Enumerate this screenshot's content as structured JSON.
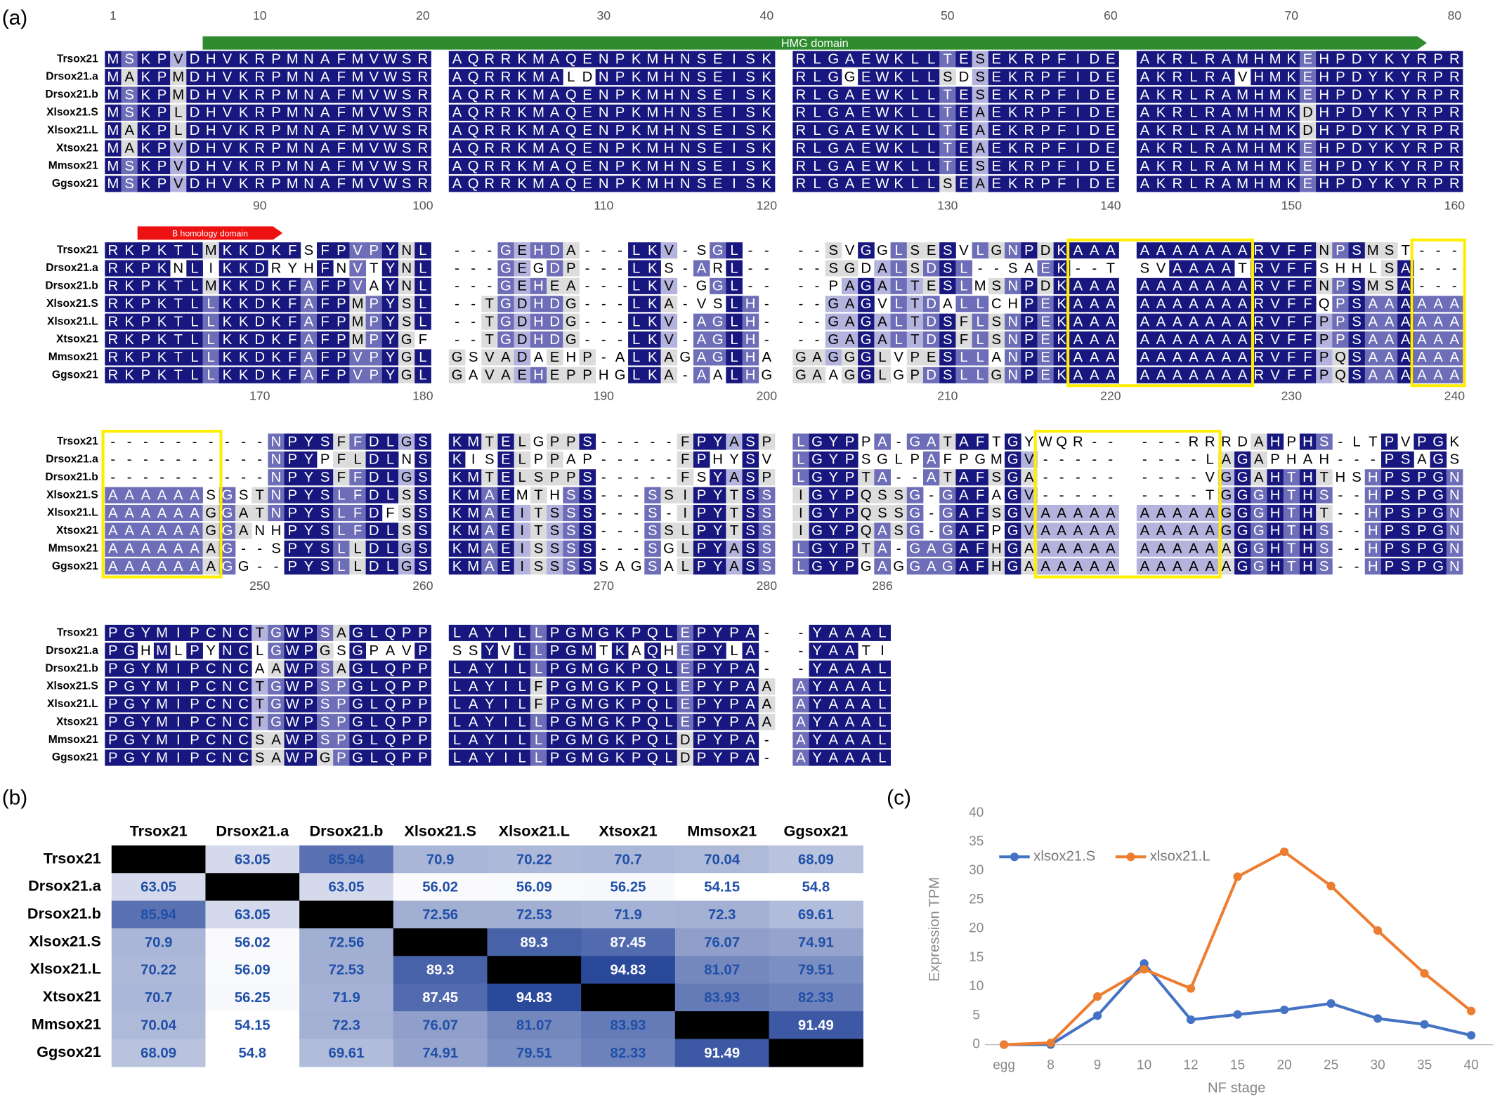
{
  "panel_labels": [
    "(a)",
    "(b)",
    "(c)"
  ],
  "alignment": {
    "sequence_names": [
      "Trsox21",
      "Drsox21.a",
      "Drsox21.b",
      "Xlsox21.S",
      "Xlsox21.L",
      "Xtsox21",
      "Mmsox21",
      "Ggsox21"
    ],
    "features": [
      {
        "label": "HMG domain"
      },
      {
        "label": "B homology domain"
      }
    ],
    "blocks": [
      {
        "ruler": [
          1,
          10,
          20,
          30,
          40,
          50,
          60,
          70,
          80
        ],
        "rows": [
          [
            "MSKPVDHVKRPMNAFMVWSR",
            "AQRRKMAQENPKMHNSEISK",
            "RLGAEWKLLTESEKRPFIDE",
            "AKRLRAMHMKEHPDYKYRPR"
          ],
          [
            "MAKPMDHVKRPMNAFMVWSR",
            "AQRRKMALDNPKMHNSEISK",
            "RLGGEWKLLSDSEKRPFIDE",
            "AKRLRAVHMKEHPDYKYRPR"
          ],
          [
            "MSKPMDHVKRPMNAFMVWSR",
            "AQRRKMAQENPKMHNSEISK",
            "RLGAEWKLLTESEKRPFIDE",
            "AKRLRAMHMKEHPDYKYRPR"
          ],
          [
            "MSKPLDHVKRPMNAFMVWSR",
            "AQRRKMAQENPKMHNSEISK",
            "RLGAEWKLLTEAEKRPFIDE",
            "AKRLRAMHMKDHPDYKYRPR"
          ],
          [
            "MAKPLDHVKRPMNAFMVWSR",
            "AQRRKMAQENPKMHNSEISK",
            "RLGAEWKLLTEAEKRPFIDE",
            "AKRLRAMHMKDHPDYKYRPR"
          ],
          [
            "MAKPVDHVKRPMNAFMVWSR",
            "AQRRKMAQENPKMHNSEISK",
            "RLGAEWKLLTEAEKRPFIDE",
            "AKRLRAMHMKEHPDYKYRPR"
          ],
          [
            "MSKPVDHVKRPMNAFMVWSR",
            "AQRRKMAQENPKMHNSEISK",
            "RLGAEWKLLTESEKRPFIDE",
            "AKRLRAMHMKEHPDYKYRPR"
          ],
          [
            "MSKPVDHVKRPMNAFMVWSR",
            "AQRRKMAQENPKMHNSEISK",
            "RLGAEWKLLSEAEKRPFIDE",
            "AKRLRAMHMKEHPDYKYRPR"
          ]
        ]
      },
      {
        "ruler": [
          90,
          100,
          110,
          120,
          130,
          140,
          150,
          160
        ],
        "rows": [
          [
            "RKPKTLMKKDKFSFPVPYNL",
            "---GEHDA---LKV-SGL--",
            "--SVGGLSESVLGNPDKAAA",
            "AAAAAAARVFFNPSMST---"
          ],
          [
            "RKPKNLIKKDRYHFNVTYNL",
            "---GEGDP---LKS-ARL--",
            "--SGDALSDSL--SAEK--T",
            "SVAAAATRVFFSHHLSA---"
          ],
          [
            "RKPKTLMKKDKFAFPVAYNL",
            "---GEHEA---LKV-GGL--",
            "--PAGALTESLMSNPDKAAA",
            "AAAAAAARVFFNPSMSA---"
          ],
          [
            "RKPKTLLKKDKFAFPMPYSL",
            "--TGDHDG---LKA-VSLH-",
            "--GAGVLTDALLCHPEKAAA",
            "AAAAAAARVFFQPSAAAAAA"
          ],
          [
            "RKPKTLLKKDKFAFPMPYSL",
            "--TGDHDG---LKV-AGLH-",
            "--GAGALTDSFLSNPEKAAA",
            "AAAAAAARVFFPPSAAAAAA"
          ],
          [
            "RKPKTLLKKDKFAFPMPYGF",
            "--TGDHDG---LKV-AGLH-",
            "--GAGALTDSFLSNPEKAAA",
            "AAAAAAARVFFPPSAAAAAA"
          ],
          [
            "RKPKTLLKKDKFAFPVPYGL",
            "GSVADAEHP-ALKAGAGLHA",
            "GAGGGLVPESLLANPEKAAA",
            "AAAAAAARVFFPQSAAAAAA"
          ],
          [
            "RKPKTLLKKDKFAFPVPYGL",
            "GAVAEHEPPHGLKA-AALHG",
            "GAAGGLGPDSLLGNPEKAAA",
            "AAAAAAARVFFPQSAAAAAA"
          ]
        ]
      },
      {
        "ruler": [
          170,
          180,
          190,
          200,
          210,
          220,
          230,
          240
        ],
        "rows": [
          [
            "----------NPYSFFDLGS",
            "KMTELGPPS-----FPYASP",
            "LGYPPA-GATAFTGYWQR--",
            "---RRRDAHPHS-LTPVPGK"
          ],
          [
            "----------NPYPFLDLNS",
            "KISELPPAP-----FPHYSV",
            "LGYPSGLPAFPGMGV-----",
            "----LAGAPHAH---PSAGS"
          ],
          [
            "----------NPYSFFDLGS",
            "KMTELSPPS-----FSYASP",
            "LGYPTA--ATAFSGA-----",
            "----VGGAHTHTHSHPSPGN"
          ],
          [
            "AAAAAASGSTNPYSLFDLSS",
            "KMAEMTHSS---SSIPYTSS",
            "IGYPQSSG-GAFAGV-----",
            "----TGGGHTHS--HPSPGN"
          ],
          [
            "AAAAAAGGATNPYSLFDFSS",
            "KMAEITSSS---S-IPYTSS",
            "IGYPQSSG-GAFSGVAAAAA",
            "AAAAAGGGHTHT--HPSPGN"
          ],
          [
            "AAAAAAGGANHPYSLFDLSS",
            "KMAEITSSS---SSLPYTSS",
            "IGYPQASG-GAFPGVAAAAA",
            "AAAAAGGGHTHS--HPSPGN"
          ],
          [
            "AAAAAAAG--SPYSLLDLGS",
            "KMAEISSSS---SGLPYASS",
            "LGYPTA-GAGAFHGAAAAAA",
            "AAAAAAGGHTHS--HPSPGN"
          ],
          [
            "AAAAAAAGG--PYSLLDLGS",
            "KMAEISSSSSAGSALPYASS",
            "LGYPGAGGAGAFHGAAAAAA",
            "AAAAAAGGHTHS--HPSPGN"
          ]
        ]
      },
      {
        "ruler": [
          250,
          260,
          270,
          280,
          286
        ],
        "rows": [
          [
            "PGYMIPCNCTGWPSAGLQPP",
            "LAYILLPGMGKPQLEPYPA-",
            "-YAAAL"
          ],
          [
            "PGHMLPYNCLGWPGSGPAVP",
            "SSYVLLPGMTKAQHEPYLA-",
            "-YAATI"
          ],
          [
            "PGYMIPCNCAAWPSAGLQPP",
            "LAYILLPGMGKPQLEPYPA-",
            "-YAAAL"
          ],
          [
            "PGYMIPCNCTGWPSPGLQPP",
            "LAYILFPGMGKPQLEPYPAA",
            "AYAAAL"
          ],
          [
            "PGYMIPCNCTGWPSPGLQPP",
            "LAYILFPGMGKPQLEPYPAA",
            "AYAAAL"
          ],
          [
            "PGYMIPCNCTGWPSPGLQPP",
            "LAYILLPGMGKPQLEPYPAA",
            "AYAAAL"
          ],
          [
            "PGYMIPCNCSAWPSPGLQPP",
            "LAYILLPGMGKPQLDPYPA-",
            "AYAAAL"
          ],
          [
            "PGYMIPCNCSAWPGPGLQPP",
            "LAYILLPGMGKPQLDPYPA-",
            "AYAAAL"
          ]
        ]
      }
    ]
  },
  "identity_table": {
    "columns": [
      "Trsox21",
      "Drsox21.a",
      "Drsox21.b",
      "Xlsox21.S",
      "Xlsox21.L",
      "Xtsox21",
      "Mmsox21",
      "Ggsox21"
    ],
    "rows": [
      {
        "name": "Trsox21",
        "values": [
          null,
          63.05,
          85.94,
          70.9,
          70.22,
          70.7,
          70.04,
          68.09
        ]
      },
      {
        "name": "Drsox21.a",
        "values": [
          63.05,
          null,
          63.05,
          56.02,
          56.09,
          56.25,
          54.15,
          54.8
        ]
      },
      {
        "name": "Drsox21.b",
        "values": [
          85.94,
          63.05,
          null,
          72.56,
          72.53,
          71.9,
          72.3,
          69.61
        ]
      },
      {
        "name": "Xlsox21.S",
        "values": [
          70.9,
          56.02,
          72.56,
          null,
          89.3,
          87.45,
          76.07,
          74.91
        ]
      },
      {
        "name": "Xlsox21.L",
        "values": [
          70.22,
          56.09,
          72.53,
          89.3,
          null,
          94.83,
          81.07,
          79.51
        ]
      },
      {
        "name": "Xtsox21",
        "values": [
          70.7,
          56.25,
          71.9,
          87.45,
          94.83,
          null,
          83.93,
          82.33
        ]
      },
      {
        "name": "Mmsox21",
        "values": [
          70.04,
          54.15,
          72.3,
          76.07,
          81.07,
          83.93,
          null,
          91.49
        ]
      },
      {
        "name": "Ggsox21",
        "values": [
          68.09,
          54.8,
          69.61,
          74.91,
          79.51,
          82.33,
          91.49,
          null
        ]
      }
    ]
  },
  "chart_data": {
    "type": "line",
    "x_label": "NF stage",
    "y_label": "Expression TPM",
    "categories": [
      "egg",
      "8",
      "9",
      "10",
      "12",
      "15",
      "20",
      "25",
      "30",
      "35",
      "40"
    ],
    "series": [
      {
        "name": "xlsox21.S",
        "color": "#4472c4",
        "values": [
          0,
          0,
          5,
          14,
          4.3,
          5.2,
          6,
          7.1,
          4.5,
          3.5,
          1.6
        ]
      },
      {
        "name": "xlsox21.L",
        "color": "#ed7d31",
        "values": [
          0,
          0.3,
          8.3,
          13,
          9.7,
          29,
          33.3,
          27.4,
          19.7,
          12.3,
          5.8
        ]
      }
    ],
    "ylim": [
      0,
      40
    ],
    "yticks": [
      0,
      5,
      10,
      15,
      20,
      25,
      30,
      35,
      40
    ],
    "grid": false,
    "legend": "top-left"
  }
}
